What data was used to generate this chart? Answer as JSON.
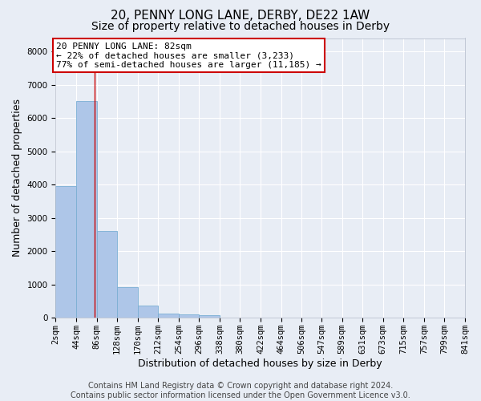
{
  "title": "20, PENNY LONG LANE, DERBY, DE22 1AW",
  "subtitle": "Size of property relative to detached houses in Derby",
  "xlabel": "Distribution of detached houses by size in Derby",
  "ylabel": "Number of detached properties",
  "footer_line1": "Contains HM Land Registry data © Crown copyright and database right 2024.",
  "footer_line2": "Contains public sector information licensed under the Open Government Licence v3.0.",
  "annotation_title": "20 PENNY LONG LANE: 82sqm",
  "annotation_line1": "← 22% of detached houses are smaller (3,233)",
  "annotation_line2": "77% of semi-detached houses are larger (11,185) →",
  "property_size_sqm": 82,
  "bin_edges": [
    2,
    44,
    86,
    128,
    170,
    212,
    254,
    296,
    338,
    380,
    422,
    464,
    506,
    547,
    589,
    631,
    673,
    715,
    757,
    799,
    841
  ],
  "bin_labels": [
    "2sqm",
    "44sqm",
    "86sqm",
    "128sqm",
    "170sqm",
    "212sqm",
    "254sqm",
    "296sqm",
    "338sqm",
    "380sqm",
    "422sqm",
    "464sqm",
    "506sqm",
    "547sqm",
    "589sqm",
    "631sqm",
    "673sqm",
    "715sqm",
    "757sqm",
    "799sqm",
    "841sqm"
  ],
  "bar_heights": [
    3950,
    6500,
    2600,
    920,
    380,
    130,
    100,
    70,
    0,
    0,
    0,
    0,
    0,
    0,
    0,
    0,
    0,
    0,
    0,
    0
  ],
  "bar_color": "#aec6e8",
  "bar_edge_color": "#7bafd4",
  "vline_x": 82,
  "vline_color": "#cc0000",
  "annotation_box_color": "#ffffff",
  "annotation_box_edge_color": "#cc0000",
  "background_color": "#e8edf5",
  "grid_color": "#ffffff",
  "ylim": [
    0,
    8400
  ],
  "yticks": [
    0,
    1000,
    2000,
    3000,
    4000,
    5000,
    6000,
    7000,
    8000
  ],
  "title_fontsize": 11,
  "subtitle_fontsize": 10,
  "axis_label_fontsize": 9,
  "tick_fontsize": 7.5,
  "annotation_fontsize": 8,
  "footer_fontsize": 7
}
